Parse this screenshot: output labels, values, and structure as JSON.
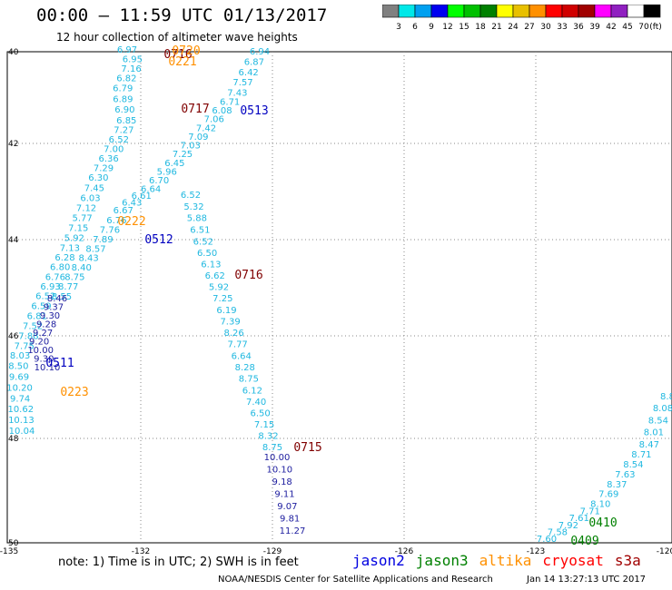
{
  "header": {
    "title": "00:00 – 11:59 UTC 01/13/2017",
    "subtitle": "12 hour collection of altimeter wave heights"
  },
  "legend": {
    "colors": [
      "#808080",
      "#00e8e8",
      "#00a0f0",
      "#0000f0",
      "#00ff00",
      "#00c000",
      "#008000",
      "#ffff00",
      "#e8c000",
      "#ff9000",
      "#ff0000",
      "#d00000",
      "#a00000",
      "#ff00ff",
      "#9020c0",
      "#ffffff",
      "#000000"
    ],
    "labels": [
      "3",
      "6",
      "9",
      "12",
      "15",
      "18",
      "21",
      "24",
      "27",
      "30",
      "33",
      "36",
      "39",
      "42",
      "45",
      "70",
      "(ft)"
    ]
  },
  "axes": {
    "y_labels": [
      "40",
      "42",
      "44",
      "46",
      "48",
      "50"
    ],
    "x_labels": [
      "-135",
      "-132",
      "-129",
      "-126",
      "-123",
      "-120"
    ]
  },
  "track_colors": {
    "light": "#20b8e0",
    "dark": "#2020a0",
    "time_jason2": "#0000c0",
    "time_altika": "#ff9000",
    "time_cryosat": "#800000",
    "time_jason3": "#008000"
  },
  "tracks": [
    {
      "id": "altika-a",
      "color": "light",
      "points": [
        {
          "v": "6.97"
        },
        {
          "v": "6.95"
        },
        {
          "v": "7.16"
        },
        {
          "v": "6.82"
        },
        {
          "v": "6.79"
        },
        {
          "v": "6.89"
        },
        {
          "v": "6.90"
        },
        {
          "v": "6.85"
        },
        {
          "v": "7.27"
        },
        {
          "v": "6.52"
        },
        {
          "v": "7.00"
        },
        {
          "v": "6.36"
        },
        {
          "v": "7.29"
        },
        {
          "v": "6.30"
        },
        {
          "v": "7.45"
        },
        {
          "v": "6.03"
        },
        {
          "v": "7.12"
        },
        {
          "v": "5.77"
        },
        {
          "v": "7.15"
        },
        {
          "v": "5.92"
        },
        {
          "v": "7.13"
        },
        {
          "v": "6.28"
        },
        {
          "v": "6.80"
        },
        {
          "v": "6.76"
        },
        {
          "v": "6.93"
        },
        {
          "v": "6.52"
        },
        {
          "v": "6.59"
        },
        {
          "v": "6.81"
        },
        {
          "v": "7.52"
        },
        {
          "v": "7.88"
        },
        {
          "v": "7.75"
        },
        {
          "v": "8.03"
        },
        {
          "v": "8.50"
        },
        {
          "v": "9.69"
        },
        {
          "v": "10.20"
        },
        {
          "v": "9.74"
        },
        {
          "v": "10.62"
        },
        {
          "v": "10.13"
        },
        {
          "v": "10.04"
        }
      ]
    },
    {
      "id": "cryosat-a",
      "color": "light",
      "points": [
        {
          "v": "6.94"
        },
        {
          "v": "6.87"
        },
        {
          "v": "6.42"
        },
        {
          "v": "7.57"
        },
        {
          "v": "7.43"
        },
        {
          "v": "6.71"
        },
        {
          "v": "6.08"
        },
        {
          "v": "7.06"
        },
        {
          "v": "7.42"
        },
        {
          "v": "7.09"
        },
        {
          "v": "7.03"
        },
        {
          "v": "7.25"
        },
        {
          "v": "6.45"
        },
        {
          "v": "5.96"
        },
        {
          "v": "6.70"
        },
        {
          "v": "6.64"
        },
        {
          "v": "6.61"
        },
        {
          "v": "6.43"
        },
        {
          "v": "6.67"
        },
        {
          "v": "6.76"
        },
        {
          "v": "7.76"
        },
        {
          "v": "7.89"
        },
        {
          "v": "8.57"
        },
        {
          "v": "8.43"
        },
        {
          "v": "8.40"
        },
        {
          "v": "8.75"
        },
        {
          "v": "8.77"
        },
        {
          "v": "8.55"
        }
      ]
    },
    {
      "id": "jason2-a",
      "color": "dark",
      "points": [
        {
          "v": "8.46"
        },
        {
          "v": "9.37"
        },
        {
          "v": "9.30"
        },
        {
          "v": "9.28"
        },
        {
          "v": "9.27"
        },
        {
          "v": "9.20"
        },
        {
          "v": "10.00"
        },
        {
          "v": "9.30"
        },
        {
          "v": "10.10"
        }
      ]
    },
    {
      "id": "cryosat-b",
      "color": "light",
      "points": [
        {
          "v": "6.52"
        },
        {
          "v": "5.32"
        },
        {
          "v": "5.88"
        },
        {
          "v": "6.51"
        },
        {
          "v": "6.52"
        },
        {
          "v": "6.50"
        },
        {
          "v": "6.13"
        },
        {
          "v": "6.62"
        },
        {
          "v": "5.92"
        },
        {
          "v": "7.25"
        },
        {
          "v": "6.19"
        },
        {
          "v": "7.39"
        },
        {
          "v": "8.26"
        },
        {
          "v": "7.77"
        },
        {
          "v": "6.64"
        },
        {
          "v": "8.28"
        },
        {
          "v": "8.75"
        },
        {
          "v": "6.12"
        },
        {
          "v": "7.40"
        },
        {
          "v": "6.50"
        },
        {
          "v": "7.15"
        },
        {
          "v": "8.32"
        },
        {
          "v": "8.75"
        }
      ]
    },
    {
      "id": "jason2-b",
      "color": "dark",
      "points": [
        {
          "v": "10.00"
        },
        {
          "v": "10.10"
        },
        {
          "v": "9.18"
        },
        {
          "v": "9.11"
        },
        {
          "v": "9.07"
        },
        {
          "v": "9.81"
        },
        {
          "v": "11.27"
        }
      ]
    },
    {
      "id": "jason3-a",
      "color": "light",
      "points": [
        {
          "v": "8.8"
        },
        {
          "v": "8.08"
        },
        {
          "v": "8.54"
        },
        {
          "v": "8.01"
        },
        {
          "v": "8.47"
        },
        {
          "v": "8.71"
        },
        {
          "v": "8.54"
        },
        {
          "v": "7.63"
        },
        {
          "v": "8.37"
        },
        {
          "v": "7.69"
        },
        {
          "v": "8.10"
        },
        {
          "v": "7.71"
        },
        {
          "v": "7.61"
        },
        {
          "v": "7.92"
        },
        {
          "v": "7.58"
        },
        {
          "v": "7.60"
        }
      ]
    }
  ],
  "time_labels": [
    {
      "text": "0716",
      "sat": "time_cryosat"
    },
    {
      "text": "0720",
      "sat": "time_altika"
    },
    {
      "text": "0221",
      "sat": "time_altika"
    },
    {
      "text": "0717",
      "sat": "time_cryosat"
    },
    {
      "text": "0513",
      "sat": "time_jason2"
    },
    {
      "text": "0222",
      "sat": "time_altika"
    },
    {
      "text": "0512",
      "sat": "time_jason2"
    },
    {
      "text": "0716",
      "sat": "time_cryosat"
    },
    {
      "text": "0511",
      "sat": "time_jason2"
    },
    {
      "text": "0223",
      "sat": "time_altika"
    },
    {
      "text": "0715",
      "sat": "time_cryosat"
    },
    {
      "text": "0410",
      "sat": "time_jason3"
    },
    {
      "text": "0409",
      "sat": "time_jason3"
    }
  ],
  "footer": {
    "note": "note: 1) Time is in UTC; 2) SWH is in feet",
    "satellites": [
      {
        "name": "jason2",
        "color": "#0000e0"
      },
      {
        "name": "jason3",
        "color": "#008000"
      },
      {
        "name": "altika",
        "color": "#ff9000"
      },
      {
        "name": "cryosat",
        "color": "#ff0000"
      },
      {
        "name": "s3a",
        "color": "#a00000"
      }
    ],
    "credit": "NOAA/NESDIS Center for Satellite Applications and Research",
    "timestamp": "Jan 14 13:27:13 UTC 2017"
  }
}
